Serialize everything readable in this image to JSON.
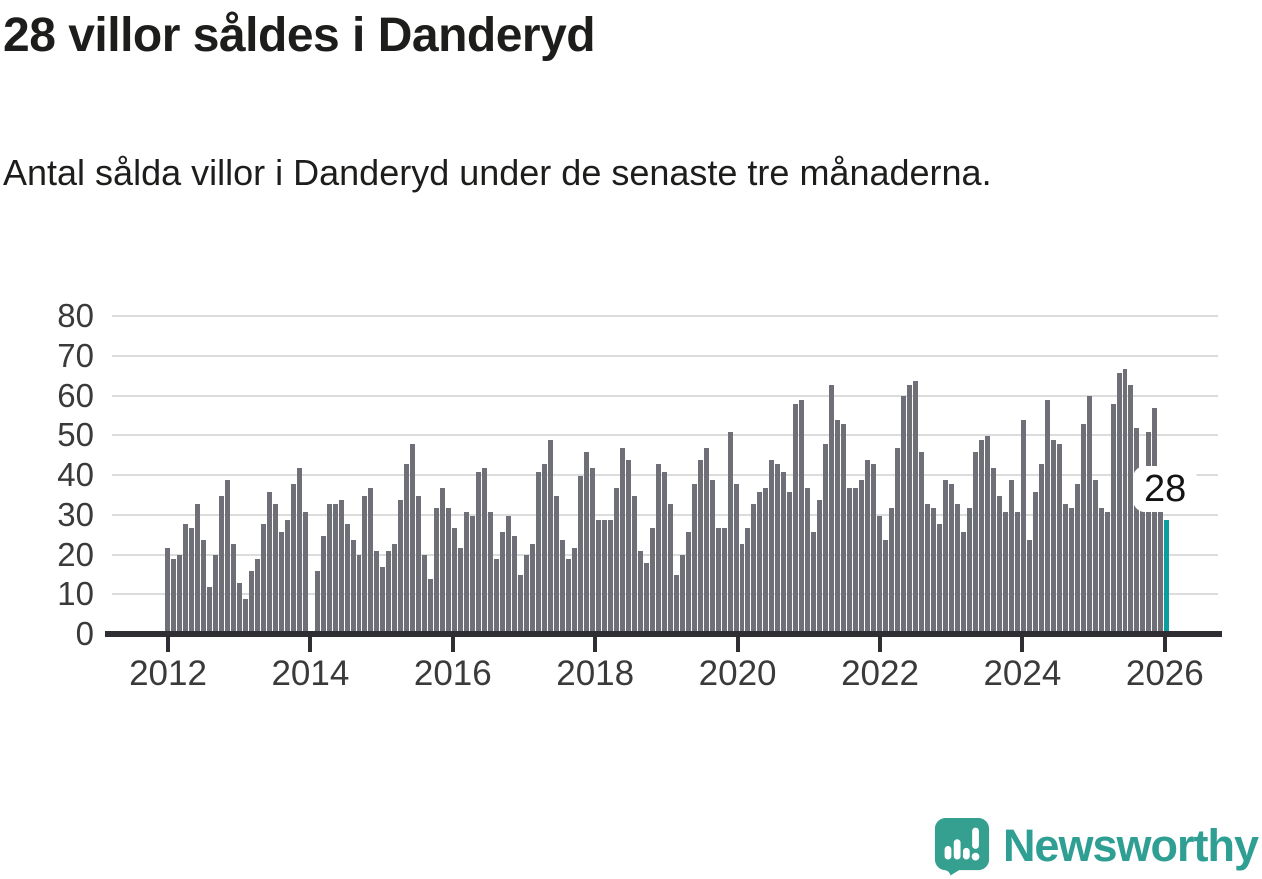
{
  "title": "28 villor såldes i Danderyd",
  "subtitle": "Antal sålda villor i Danderyd under de senaste tre månaderna.",
  "chart_data": {
    "type": "bar",
    "frequency": "monthly",
    "x_start": "2012-01",
    "x_end": "2025-12",
    "series": [
      {
        "name": "Antal sålda villor",
        "values": [
          21,
          18,
          19,
          27,
          26,
          32,
          23,
          11,
          19,
          34,
          38,
          22,
          12,
          8,
          15,
          18,
          27,
          35,
          32,
          25,
          28,
          37,
          41,
          30,
          0,
          15,
          24,
          32,
          32,
          33,
          27,
          23,
          19,
          34,
          36,
          20,
          16,
          20,
          22,
          33,
          42,
          47,
          34,
          19,
          13,
          31,
          36,
          31,
          26,
          21,
          30,
          29,
          40,
          41,
          30,
          18,
          25,
          29,
          24,
          14,
          19,
          22,
          40,
          42,
          48,
          34,
          23,
          18,
          21,
          39,
          45,
          41,
          28,
          28,
          28,
          36,
          46,
          43,
          34,
          20,
          17,
          26,
          42,
          40,
          32,
          14,
          19,
          25,
          37,
          43,
          46,
          38,
          26,
          26,
          50,
          37,
          22,
          26,
          32,
          35,
          36,
          43,
          42,
          40,
          35,
          57,
          58,
          36,
          25,
          33,
          47,
          62,
          53,
          52,
          36,
          36,
          38,
          43,
          42,
          29,
          23,
          31,
          46,
          59,
          62,
          63,
          45,
          32,
          31,
          27,
          38,
          37,
          32,
          25,
          31,
          45,
          48,
          49,
          41,
          34,
          30,
          38,
          30,
          53,
          23,
          35,
          42,
          58,
          48,
          47,
          32,
          31,
          37,
          52,
          59,
          38,
          31,
          30,
          57,
          65,
          66,
          62,
          51,
          41,
          50,
          56,
          31,
          28
        ]
      }
    ],
    "x_tick_labels": [
      "2012",
      "2014",
      "2016",
      "2018",
      "2020",
      "2022",
      "2024",
      "2026"
    ],
    "y_tick_labels": [
      "0",
      "10",
      "20",
      "30",
      "40",
      "50",
      "60",
      "70",
      "80"
    ],
    "ylim": [
      0,
      80
    ],
    "grid": true,
    "legend_position": "none",
    "bar_color": "#6f6f78",
    "highlight_color": "#0a9e9e",
    "highlight_last_value": 28,
    "highlight_label": "28"
  },
  "branding": {
    "logo_text": "Newsworthy",
    "logo_color": "#2f9e93",
    "logo_icon": "speech-bubble-bar-chart-icon"
  }
}
